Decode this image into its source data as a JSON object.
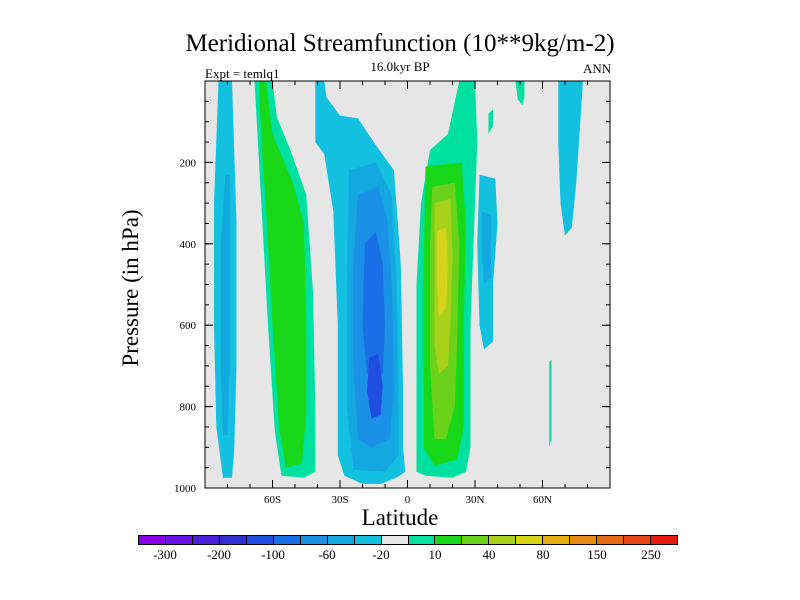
{
  "chart_data": {
    "type": "heatmap",
    "title": "Meridional Streamfunction (10**9kg/m-2)",
    "subtitle": "16.0kyr BP",
    "left_annotation": "Expt = temlq1",
    "right_annotation": "ANN",
    "xlabel": "Latitude",
    "ylabel": "Pressure (in hPa)",
    "x_range": [
      -90,
      90
    ],
    "y_range": [
      0,
      1000
    ],
    "x_ticks": [
      {
        "value": -60,
        "label": "60S"
      },
      {
        "value": -30,
        "label": "30S"
      },
      {
        "value": 0,
        "label": "0"
      },
      {
        "value": 30,
        "label": "30N"
      },
      {
        "value": 60,
        "label": "60N"
      }
    ],
    "y_ticks": [
      {
        "value": 200,
        "label": "200"
      },
      {
        "value": 400,
        "label": "400"
      },
      {
        "value": 600,
        "label": "600"
      },
      {
        "value": 800,
        "label": "800"
      },
      {
        "value": 1000,
        "label": "1000"
      }
    ],
    "colorbar": {
      "colors": [
        "#8a00e6",
        "#6a13e0",
        "#4a1fd8",
        "#2f2fd2",
        "#1f4ee0",
        "#1a6fe6",
        "#1a90e6",
        "#13a8e0",
        "#13c0e0",
        "#e6e6e6",
        "#00e0a0",
        "#19d819",
        "#6ad21a",
        "#a8d21a",
        "#d8d21a",
        "#e6b013",
        "#e68a13",
        "#e66813",
        "#e64613",
        "#e61a13"
      ],
      "labels": [
        {
          "text": "-300",
          "boundary": 1
        },
        {
          "text": "-200",
          "boundary": 3
        },
        {
          "text": "-100",
          "boundary": 5
        },
        {
          "text": "-60",
          "boundary": 7
        },
        {
          "text": "-20",
          "boundary": 9
        },
        {
          "text": "10",
          "boundary": 11
        },
        {
          "text": "40",
          "boundary": 13
        },
        {
          "text": "80",
          "boundary": 15
        },
        {
          "text": "150",
          "boundary": 17
        },
        {
          "text": "250",
          "boundary": 19
        }
      ]
    },
    "regions": [
      {
        "color": "#e6e6e6",
        "points": [
          [
            -90,
            0
          ],
          [
            90,
            0
          ],
          [
            90,
            1000
          ],
          [
            -90,
            1000
          ]
        ]
      },
      {
        "color": "#13c0e0",
        "points": [
          [
            -84,
            0
          ],
          [
            -78,
            0
          ],
          [
            -76,
            350
          ],
          [
            -76,
            700
          ],
          [
            -77,
            900
          ],
          [
            -78,
            975
          ],
          [
            -82,
            975
          ],
          [
            -85,
            850
          ],
          [
            -86,
            600
          ],
          [
            -86,
            300
          ]
        ]
      },
      {
        "color": "#13a8e0",
        "points": [
          [
            -81,
            230
          ],
          [
            -79,
            230
          ],
          [
            -79,
            700
          ],
          [
            -80,
            870
          ],
          [
            -82,
            870
          ],
          [
            -83,
            700
          ],
          [
            -83,
            400
          ]
        ]
      },
      {
        "color": "#00e0a0",
        "points": [
          [
            -68,
            0
          ],
          [
            -60,
            0
          ],
          [
            -58,
            90
          ],
          [
            -52,
            170
          ],
          [
            -45,
            280
          ],
          [
            -42,
            520
          ],
          [
            -41,
            800
          ],
          [
            -41,
            960
          ],
          [
            -46,
            975
          ],
          [
            -56,
            970
          ],
          [
            -59,
            860
          ],
          [
            -62,
            600
          ],
          [
            -65,
            300
          ],
          [
            -67,
            100
          ]
        ]
      },
      {
        "color": "#19d819",
        "points": [
          [
            -66,
            0
          ],
          [
            -63,
            0
          ],
          [
            -60,
            130
          ],
          [
            -51,
            250
          ],
          [
            -46,
            350
          ],
          [
            -45,
            600
          ],
          [
            -45,
            820
          ],
          [
            -47,
            940
          ],
          [
            -54,
            950
          ],
          [
            -57,
            860
          ],
          [
            -60,
            600
          ],
          [
            -63,
            300
          ],
          [
            -65,
            150
          ]
        ]
      },
      {
        "color": "#13c0e0",
        "points": [
          [
            -41,
            0
          ],
          [
            -37,
            0
          ],
          [
            -36,
            40
          ],
          [
            -30,
            85
          ],
          [
            -22,
            92
          ],
          [
            -15,
            150
          ],
          [
            -6,
            220
          ],
          [
            -3,
            450
          ],
          [
            -2,
            750
          ],
          [
            -2,
            900
          ],
          [
            -1,
            960
          ],
          [
            -5,
            975
          ],
          [
            -12,
            990
          ],
          [
            -20,
            990
          ],
          [
            -28,
            970
          ],
          [
            -31,
            920
          ],
          [
            -31,
            600
          ],
          [
            -33,
            320
          ],
          [
            -37,
            180
          ],
          [
            -41,
            150
          ]
        ]
      },
      {
        "color": "#13a8e0",
        "points": [
          [
            -26,
            220
          ],
          [
            -14,
            200
          ],
          [
            -7,
            280
          ],
          [
            -5,
            480
          ],
          [
            -4,
            750
          ],
          [
            -4,
            920
          ],
          [
            -10,
            960
          ],
          [
            -24,
            955
          ],
          [
            -27,
            800
          ],
          [
            -27,
            500
          ]
        ]
      },
      {
        "color": "#1a90e6",
        "points": [
          [
            -22,
            280
          ],
          [
            -13,
            260
          ],
          [
            -9,
            340
          ],
          [
            -7,
            500
          ],
          [
            -6,
            760
          ],
          [
            -8,
            880
          ],
          [
            -16,
            900
          ],
          [
            -22,
            880
          ],
          [
            -24,
            700
          ],
          [
            -24,
            450
          ]
        ]
      },
      {
        "color": "#1a6fe6",
        "points": [
          [
            -19,
            400
          ],
          [
            -14,
            370
          ],
          [
            -11,
            450
          ],
          [
            -10,
            600
          ],
          [
            -11,
            720
          ],
          [
            -18,
            720
          ],
          [
            -20,
            600
          ]
        ]
      },
      {
        "color": "#1f4ee0",
        "points": [
          [
            -17,
            680
          ],
          [
            -13,
            670
          ],
          [
            -11,
            750
          ],
          [
            -12,
            820
          ],
          [
            -16,
            830
          ],
          [
            -18,
            760
          ]
        ]
      },
      {
        "color": "#00e0a0",
        "points": [
          [
            23,
            0
          ],
          [
            30,
            0
          ],
          [
            31,
            150
          ],
          [
            30,
            300
          ],
          [
            28,
            600
          ],
          [
            28,
            900
          ],
          [
            26,
            960
          ],
          [
            20,
            975
          ],
          [
            8,
            970
          ],
          [
            4,
            960
          ],
          [
            4,
            500
          ],
          [
            6,
            300
          ],
          [
            10,
            170
          ],
          [
            18,
            130
          ]
        ]
      },
      {
        "color": "#19d819",
        "points": [
          [
            8,
            210
          ],
          [
            24,
            200
          ],
          [
            26,
            350
          ],
          [
            25,
            600
          ],
          [
            25,
            850
          ],
          [
            22,
            930
          ],
          [
            12,
            945
          ],
          [
            7,
            900
          ],
          [
            7,
            500
          ]
        ]
      },
      {
        "color": "#6ad21a",
        "points": [
          [
            11,
            260
          ],
          [
            21,
            250
          ],
          [
            23,
            400
          ],
          [
            22,
            650
          ],
          [
            21,
            800
          ],
          [
            17,
            880
          ],
          [
            12,
            880
          ],
          [
            10,
            700
          ],
          [
            10,
            400
          ]
        ]
      },
      {
        "color": "#a8d21a",
        "points": [
          [
            12,
            300
          ],
          [
            19,
            290
          ],
          [
            20,
            430
          ],
          [
            19,
            600
          ],
          [
            18,
            700
          ],
          [
            14,
            720
          ],
          [
            12,
            650
          ],
          [
            12,
            450
          ]
        ]
      },
      {
        "color": "#d8d21a",
        "points": [
          [
            13,
            370
          ],
          [
            17,
            360
          ],
          [
            18,
            450
          ],
          [
            17,
            560
          ],
          [
            14,
            580
          ],
          [
            13,
            500
          ]
        ]
      },
      {
        "color": "#13c0e0",
        "points": [
          [
            32,
            230
          ],
          [
            39,
            240
          ],
          [
            40,
            350
          ],
          [
            38,
            500
          ],
          [
            38,
            640
          ],
          [
            34,
            660
          ],
          [
            32,
            600
          ],
          [
            31,
            400
          ]
        ]
      },
      {
        "color": "#13a8e0",
        "points": [
          [
            33,
            320
          ],
          [
            37,
            330
          ],
          [
            37,
            480
          ],
          [
            34,
            500
          ],
          [
            33,
            420
          ]
        ]
      },
      {
        "color": "#00e0a0",
        "points": [
          [
            36,
            80
          ],
          [
            38,
            70
          ],
          [
            38,
            110
          ],
          [
            36,
            130
          ]
        ]
      },
      {
        "color": "#00e0a0",
        "points": [
          [
            48,
            0
          ],
          [
            52,
            0
          ],
          [
            52,
            40
          ],
          [
            51,
            60
          ],
          [
            49,
            45
          ]
        ]
      },
      {
        "color": "#13c0e0",
        "points": [
          [
            67,
            0
          ],
          [
            78,
            0
          ],
          [
            77,
            80
          ],
          [
            75,
            250
          ],
          [
            73,
            360
          ],
          [
            70,
            380
          ],
          [
            68,
            300
          ],
          [
            67,
            150
          ]
        ]
      },
      {
        "color": "#00e0a0",
        "points": [
          [
            63,
            690
          ],
          [
            64,
            685
          ],
          [
            64,
            880
          ],
          [
            63,
            900
          ]
        ]
      }
    ]
  }
}
